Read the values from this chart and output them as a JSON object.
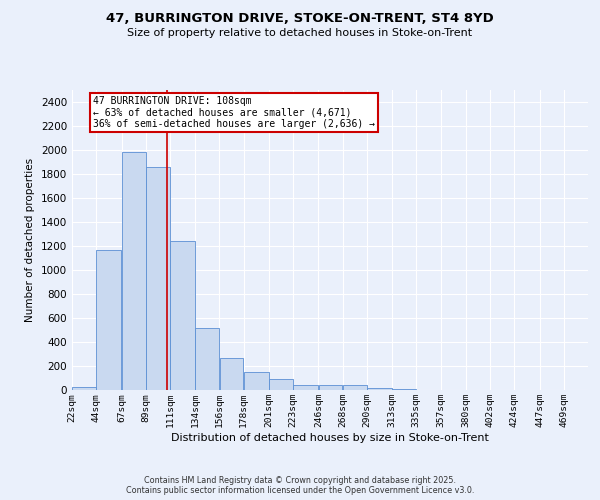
{
  "title_line1": "47, BURRINGTON DRIVE, STOKE-ON-TRENT, ST4 8YD",
  "title_line2": "Size of property relative to detached houses in Stoke-on-Trent",
  "xlabel": "Distribution of detached houses by size in Stoke-on-Trent",
  "ylabel": "Number of detached properties",
  "bin_labels": [
    "22sqm",
    "44sqm",
    "67sqm",
    "89sqm",
    "111sqm",
    "134sqm",
    "156sqm",
    "178sqm",
    "201sqm",
    "223sqm",
    "246sqm",
    "268sqm",
    "290sqm",
    "313sqm",
    "335sqm",
    "357sqm",
    "380sqm",
    "402sqm",
    "424sqm",
    "447sqm",
    "469sqm"
  ],
  "bar_heights": [
    25,
    1170,
    1980,
    1860,
    1240,
    520,
    270,
    150,
    90,
    45,
    38,
    38,
    15,
    8,
    4,
    3,
    2,
    2,
    2,
    2,
    2
  ],
  "bar_color": "#c9d9f0",
  "bar_edge_color": "#5b8fd4",
  "bg_color": "#eaf0fb",
  "grid_color": "#ffffff",
  "vline_x": 108,
  "vline_color": "#cc0000",
  "annotation_text": "47 BURRINGTON DRIVE: 108sqm\n← 63% of detached houses are smaller (4,671)\n36% of semi-detached houses are larger (2,636) →",
  "annotation_box_color": "#ffffff",
  "annotation_box_edge": "#cc0000",
  "ylim": [
    0,
    2500
  ],
  "yticks": [
    0,
    200,
    400,
    600,
    800,
    1000,
    1200,
    1400,
    1600,
    1800,
    2000,
    2200,
    2400
  ],
  "footer_line1": "Contains HM Land Registry data © Crown copyright and database right 2025.",
  "footer_line2": "Contains public sector information licensed under the Open Government Licence v3.0.",
  "bin_edges": [
    22,
    44,
    67,
    89,
    111,
    134,
    156,
    178,
    201,
    223,
    246,
    268,
    290,
    313,
    335,
    357,
    380,
    402,
    424,
    447,
    469,
    491
  ]
}
